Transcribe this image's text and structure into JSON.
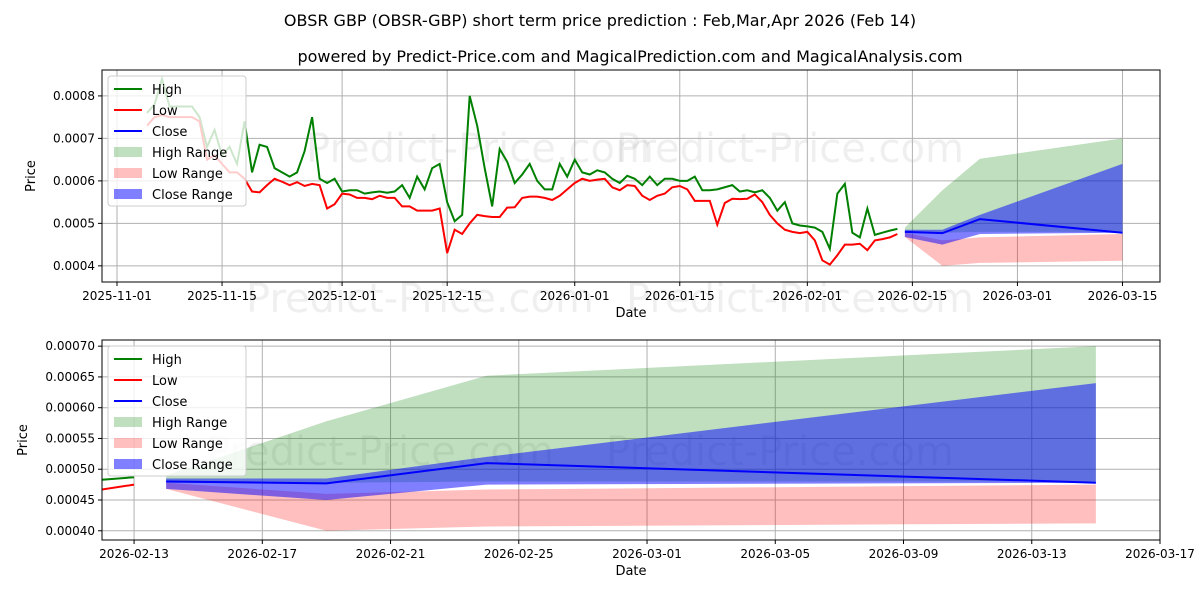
{
  "title": "OBSR GBP (OBSR-GBP) short term price prediction : Feb,Mar,Apr 2026 (Feb 14)",
  "subtitle": "powered by Predict-Price.com and MagicalPrediction.com and MagicalAnalysis.com",
  "watermarks": [
    "Predict-Price.com",
    "Predict-Price.com"
  ],
  "colors": {
    "high": "#008000",
    "low": "#ff0000",
    "close": "#0000ff",
    "high_range": "#008000",
    "low_range": "#ff0000",
    "close_range": "#0000ff"
  },
  "legend": [
    "High",
    "Low",
    "Close",
    "High Range",
    "Low Range",
    "Close Range"
  ],
  "chart_data": {
    "type": "line",
    "xlabel": "Date",
    "ylabel": "Price",
    "history": {
      "start_date": "2025-11-05",
      "high": [
        0.00076,
        0.00078,
        0.00084,
        0.000775,
        0.000775,
        0.000775,
        0.000775,
        0.00075,
        0.00068,
        0.00072,
        0.00066,
        0.00068,
        0.00064,
        0.00074,
        0.00062,
        0.000685,
        0.00068,
        0.00063,
        0.00062,
        0.00061,
        0.00062,
        0.00067,
        0.00075,
        0.000605,
        0.000595,
        0.000605,
        0.000575,
        0.000578,
        0.000578,
        0.00057,
        0.000573,
        0.000575,
        0.000572,
        0.000575,
        0.00059,
        0.00056,
        0.00061,
        0.00058,
        0.00063,
        0.00064,
        0.00055,
        0.000505,
        0.00052,
        0.0008,
        0.00073,
        0.00063,
        0.00054,
        0.000675,
        0.000645,
        0.000595,
        0.000615,
        0.00064,
        0.0006,
        0.00058,
        0.00058,
        0.00064,
        0.00061,
        0.00065,
        0.00062,
        0.000615,
        0.000625,
        0.00062,
        0.000605,
        0.000595,
        0.000612,
        0.000605,
        0.00059,
        0.00061,
        0.00059,
        0.000605,
        0.000605,
        0.0006,
        0.0006,
        0.00061,
        0.000578,
        0.000578,
        0.00058,
        0.000585,
        0.00059,
        0.000575,
        0.000578,
        0.000573,
        0.000578,
        0.00056,
        0.00053,
        0.00055,
        0.0005,
        0.000495,
        0.000493,
        0.00049,
        0.00048,
        0.00044,
        0.00057,
        0.000593,
        0.000478,
        0.000467,
        0.000535,
        0.000473,
        0.000478,
        0.000483,
        0.000487
      ],
      "low": [
        0.00073,
        0.00075,
        0.000755,
        0.00075,
        0.00075,
        0.00075,
        0.00075,
        0.00074,
        0.00065,
        0.00066,
        0.00064,
        0.00062,
        0.00062,
        0.000605,
        0.000575,
        0.000573,
        0.00059,
        0.000605,
        0.000598,
        0.00059,
        0.000597,
        0.000588,
        0.000593,
        0.00059,
        0.000535,
        0.000545,
        0.00057,
        0.000568,
        0.00056,
        0.00056,
        0.000557,
        0.000565,
        0.00056,
        0.00056,
        0.00054,
        0.00054,
        0.00053,
        0.00053,
        0.00053,
        0.000535,
        0.00043,
        0.000485,
        0.000475,
        0.0005,
        0.00052,
        0.000517,
        0.000515,
        0.000515,
        0.000537,
        0.000538,
        0.00056,
        0.000563,
        0.000563,
        0.00056,
        0.000555,
        0.000565,
        0.00058,
        0.000595,
        0.000605,
        0.0006,
        0.000603,
        0.000605,
        0.000585,
        0.000578,
        0.00059,
        0.000588,
        0.000565,
        0.000555,
        0.000565,
        0.00057,
        0.000585,
        0.000588,
        0.00058,
        0.000553,
        0.000553,
        0.000553,
        0.000497,
        0.000548,
        0.000558,
        0.000557,
        0.000558,
        0.000568,
        0.00055,
        0.00052,
        0.0005,
        0.000485,
        0.00048,
        0.000477,
        0.00048,
        0.00046,
        0.000413,
        0.000403,
        0.000425,
        0.00045,
        0.00045,
        0.000452,
        0.000437,
        0.00046,
        0.000463,
        0.000467,
        0.000475
      ]
    },
    "forecast": {
      "dates": [
        "2026-02-14",
        "2026-02-19",
        "2026-02-24",
        "2026-03-15"
      ],
      "close": [
        0.00048,
        0.000477,
        0.00051,
        0.000478
      ],
      "high_range": {
        "lower": [
          0.000478,
          0.000478,
          0.00048,
          0.00048
        ],
        "upper": [
          0.00049,
          0.000578,
          0.000652,
          0.0007
        ]
      },
      "low_range": {
        "lower": [
          0.000468,
          0.0004,
          0.000407,
          0.000412
        ],
        "upper": [
          0.000478,
          0.00046,
          0.000467,
          0.000475
        ]
      },
      "close_range": {
        "lower": [
          0.000468,
          0.00045,
          0.000475,
          0.000478
        ],
        "upper": [
          0.000485,
          0.000485,
          0.00052,
          0.00064
        ]
      }
    },
    "plots": [
      {
        "name": "full",
        "xlim": [
          "2025-10-30",
          "2026-03-20"
        ],
        "ylim": [
          0.000362,
          0.000861
        ],
        "xticks": [
          "2025-11-01",
          "2025-11-15",
          "2025-12-01",
          "2025-12-15",
          "2026-01-01",
          "2026-01-15",
          "2026-02-01",
          "2026-02-15",
          "2026-03-01",
          "2026-03-15"
        ],
        "yticks": [
          0.0004,
          0.0005,
          0.0006,
          0.0007,
          0.0008
        ],
        "ytick_labels": [
          "0.0004",
          "0.0005",
          "0.0006",
          "0.0007",
          "0.0008"
        ]
      },
      {
        "name": "forecast",
        "xlim": [
          "2026-02-12",
          "2026-03-17"
        ],
        "ylim": [
          0.000385,
          0.00071
        ],
        "xticks": [
          "2026-02-13",
          "2026-02-17",
          "2026-02-21",
          "2026-02-25",
          "2026-03-01",
          "2026-03-05",
          "2026-03-09",
          "2026-03-13",
          "2026-03-17"
        ],
        "yticks": [
          0.0004,
          0.00045,
          0.0005,
          0.00055,
          0.0006,
          0.00065,
          0.0007
        ],
        "ytick_labels": [
          "0.00040",
          "0.00045",
          "0.00050",
          "0.00055",
          "0.00060",
          "0.00065",
          "0.00070"
        ]
      }
    ]
  }
}
